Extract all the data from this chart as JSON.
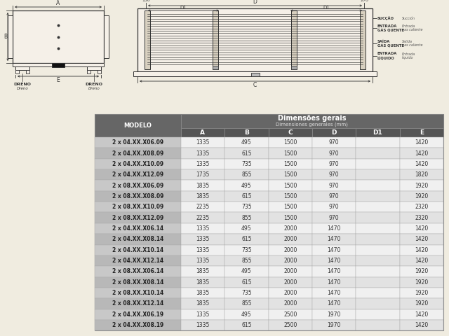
{
  "bg_color": "#f0ece0",
  "table_header_color": "#666666",
  "table_header2_color": "#555555",
  "table_row_even": "#e2e2e2",
  "table_row_odd": "#f0f0f0",
  "table_model_col_odd": "#c8c8c8",
  "table_model_col_even": "#b8b8b8",
  "header_text": "Dimensões gerais",
  "header_subtext": "Dimensiones generales (mm)",
  "col_headers": [
    "A",
    "B",
    "C",
    "D",
    "D1",
    "E"
  ],
  "model_col": "MODELO",
  "rows": [
    [
      "2 x 04.XX.X06.09",
      "1335",
      "495",
      "1500",
      "970",
      "",
      "1420"
    ],
    [
      "2 x 04.XX.X08.09",
      "1335",
      "615",
      "1500",
      "970",
      "",
      "1420"
    ],
    [
      "2 x 04.XX.X10.09",
      "1335",
      "735",
      "1500",
      "970",
      "",
      "1420"
    ],
    [
      "2 x 04.XX.X12.09",
      "1735",
      "855",
      "1500",
      "970",
      "",
      "1820"
    ],
    [
      "2 x 08.XX.X06.09",
      "1835",
      "495",
      "1500",
      "970",
      "",
      "1920"
    ],
    [
      "2 x 08.XX.X08.09",
      "1835",
      "615",
      "1500",
      "970",
      "",
      "1920"
    ],
    [
      "2 x 08.XX.X10.09",
      "2235",
      "735",
      "1500",
      "970",
      "",
      "2320"
    ],
    [
      "2 x 08.XX.X12.09",
      "2235",
      "855",
      "1500",
      "970",
      "",
      "2320"
    ],
    [
      "2 x 04.XX.X06.14",
      "1335",
      "495",
      "2000",
      "1470",
      "",
      "1420"
    ],
    [
      "2 x 04.XX.X08.14",
      "1335",
      "615",
      "2000",
      "1470",
      "",
      "1420"
    ],
    [
      "2 x 04.XX.X10.14",
      "1335",
      "735",
      "2000",
      "1470",
      "",
      "1420"
    ],
    [
      "2 x 04.XX.X12.14",
      "1335",
      "855",
      "2000",
      "1470",
      "",
      "1420"
    ],
    [
      "2 x 08.XX.X06.14",
      "1835",
      "495",
      "2000",
      "1470",
      "",
      "1920"
    ],
    [
      "2 x 08.XX.X08.14",
      "1835",
      "615",
      "2000",
      "1470",
      "",
      "1920"
    ],
    [
      "2 x 08.XX.X10.14",
      "1835",
      "735",
      "2000",
      "1470",
      "",
      "1920"
    ],
    [
      "2 x 08.XX.X12.14",
      "1835",
      "855",
      "2000",
      "1470",
      "",
      "1920"
    ],
    [
      "2 x 04.XX.X06.19",
      "1335",
      "495",
      "2500",
      "1970",
      "",
      "1420"
    ],
    [
      "2 x 04.XX.X08.19",
      "1335",
      "615",
      "2500",
      "1970",
      "",
      "1420"
    ]
  ],
  "line_color": "#333333",
  "text_color": "#333333"
}
